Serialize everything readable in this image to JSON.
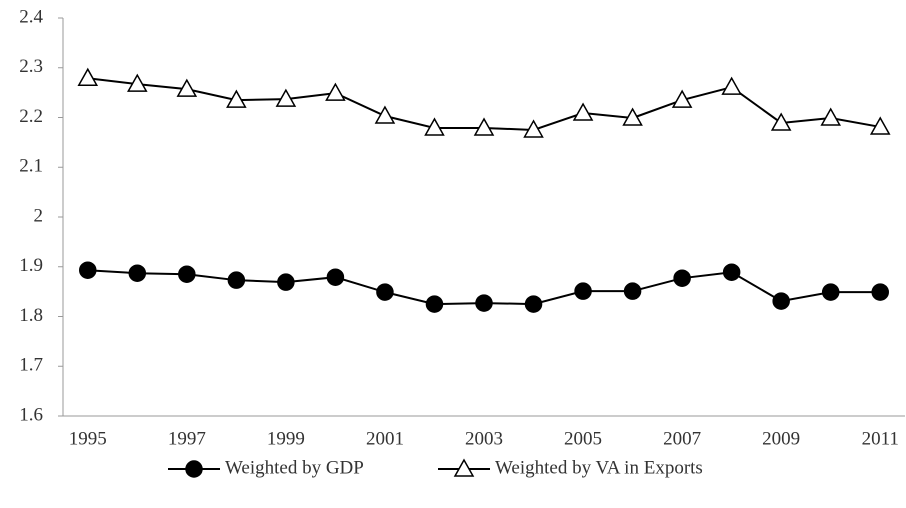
{
  "chart_data": {
    "type": "line",
    "categories": [
      "1995",
      null,
      "1997",
      null,
      "1999",
      null,
      "2001",
      null,
      "2003",
      null,
      "2005",
      null,
      "2007",
      null,
      "2009",
      null,
      "2011"
    ],
    "series": [
      {
        "name": "Weighted by GDP",
        "color": "#000000",
        "marker": "circle",
        "values": [
          1.893,
          1.887,
          1.885,
          1.873,
          1.869,
          1.879,
          1.849,
          1.825,
          1.827,
          1.825,
          1.851,
          1.851,
          1.877,
          1.889,
          1.831,
          1.849,
          1.849
        ]
      },
      {
        "name": "Weighted by VA in Exports",
        "color": "#000000",
        "marker": "triangle",
        "values": [
          2.279,
          2.267,
          2.257,
          2.235,
          2.237,
          2.249,
          2.203,
          2.179,
          2.179,
          2.175,
          2.209,
          2.199,
          2.235,
          2.261,
          2.189,
          2.199,
          2.181
        ]
      }
    ],
    "ylim": [
      1.6,
      2.4
    ],
    "yticks": [
      1.6,
      1.7,
      1.8,
      1.9,
      2,
      2.1,
      2.2,
      2.3,
      2.4
    ],
    "grid": false,
    "legend": "bottom"
  }
}
